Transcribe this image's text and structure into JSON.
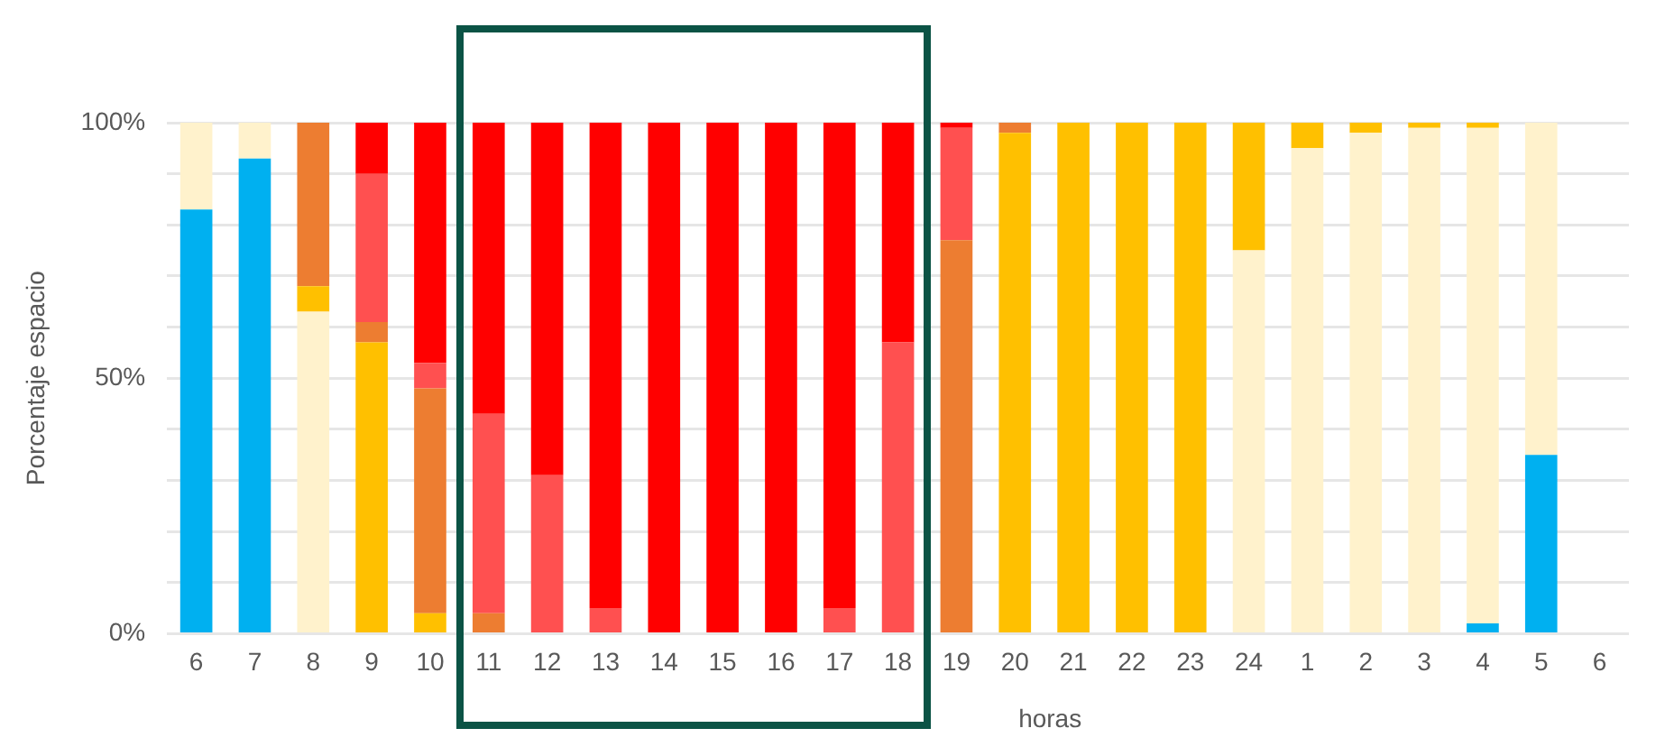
{
  "chart_data": {
    "type": "bar",
    "stacked": true,
    "xlabel": "horas",
    "ylabel": "Porcentaje espacio",
    "categories": [
      "6",
      "7",
      "8",
      "9",
      "10",
      "11",
      "12",
      "13",
      "14",
      "15",
      "16",
      "17",
      "18",
      "19",
      "20",
      "21",
      "22",
      "23",
      "24",
      "1",
      "2",
      "3",
      "4",
      "5",
      "6"
    ],
    "series": [
      {
        "color": "#00b0f0",
        "values": [
          83,
          93,
          0,
          0,
          0,
          0,
          0,
          0,
          0,
          0,
          0,
          0,
          0,
          0,
          0,
          0,
          0,
          0,
          0,
          0,
          0,
          0,
          2,
          35,
          null
        ]
      },
      {
        "color": "#fff2cc",
        "values": [
          17,
          7,
          63,
          0,
          0,
          0,
          0,
          0,
          0,
          0,
          0,
          0,
          0,
          0,
          0,
          0,
          0,
          0,
          75,
          95,
          98,
          99,
          97,
          65,
          null
        ]
      },
      {
        "color": "#ffc000",
        "values": [
          0,
          0,
          5,
          57,
          4,
          0,
          0,
          0,
          0,
          0,
          0,
          0,
          0,
          0,
          98,
          100,
          100,
          100,
          25,
          5,
          2,
          1,
          1,
          0,
          null
        ]
      },
      {
        "color": "#ed7d31",
        "values": [
          0,
          0,
          32,
          4,
          44,
          4,
          0,
          0,
          0,
          0,
          0,
          0,
          0,
          77,
          2,
          0,
          0,
          0,
          0,
          0,
          0,
          0,
          0,
          0,
          null
        ]
      },
      {
        "color": "#ff5050",
        "values": [
          0,
          0,
          0,
          29,
          5,
          39,
          31,
          5,
          0,
          0,
          0,
          5,
          57,
          22,
          0,
          0,
          0,
          0,
          0,
          0,
          0,
          0,
          0,
          0,
          null
        ]
      },
      {
        "color": "#ff0000",
        "values": [
          0,
          0,
          0,
          10,
          47,
          57,
          69,
          95,
          100,
          100,
          100,
          95,
          43,
          1,
          0,
          0,
          0,
          0,
          0,
          0,
          0,
          0,
          0,
          0,
          null
        ]
      }
    ],
    "ylim": [
      0,
      100
    ],
    "yticks": [
      {
        "value": 0,
        "label": "0%"
      },
      {
        "value": 10,
        "label": null
      },
      {
        "value": 20,
        "label": null
      },
      {
        "value": 30,
        "label": null
      },
      {
        "value": 40,
        "label": null
      },
      {
        "value": 50,
        "label": "50%"
      },
      {
        "value": 60,
        "label": null
      },
      {
        "value": 70,
        "label": null
      },
      {
        "value": 80,
        "label": null
      },
      {
        "value": 90,
        "label": null
      },
      {
        "value": 100,
        "label": "100%"
      }
    ],
    "grid": "y"
  }
}
